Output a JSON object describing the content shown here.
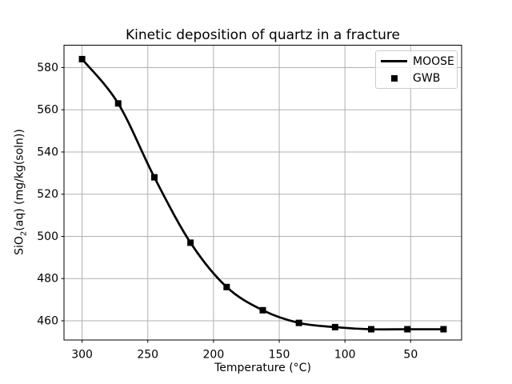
{
  "figure": {
    "background": "#ffffff"
  },
  "chart_data": {
    "type": "line",
    "title": "Kinetic deposition of quartz in a fracture",
    "xlabel": "Temperature (°C)",
    "ylabel": {
      "pre": "SiO",
      "sub": "2",
      "post": "(aq) (mg/kg(soln))"
    },
    "x": [
      300,
      272.5,
      245,
      217.5,
      190,
      162.5,
      135,
      107.5,
      80,
      52.5,
      25
    ],
    "series": [
      {
        "name": "MOOSE",
        "style": "line",
        "color": "#000000",
        "linewidth": 2.7,
        "values": [
          584,
          563,
          528,
          497,
          476,
          465,
          459,
          457,
          456,
          456,
          456
        ]
      },
      {
        "name": "GWB",
        "style": "square-markers",
        "color": "#000000",
        "markersize": 8,
        "values": [
          584,
          563,
          528,
          497,
          476,
          465,
          459,
          457,
          456,
          456,
          456
        ]
      }
    ],
    "xticks": [
      300,
      250,
      200,
      150,
      100,
      50
    ],
    "yticks": [
      460,
      480,
      500,
      520,
      540,
      560,
      580
    ],
    "xlim": [
      313.75,
      11.25
    ],
    "ylim": [
      450.9,
      590.6
    ],
    "x_inverted": true,
    "grid": true,
    "grid_color": "#b0b0b0",
    "axis_color": "#000000",
    "tick_label_color": "#000000",
    "legend": {
      "position": "upper right",
      "entries": [
        "MOOSE",
        "GWB"
      ]
    }
  }
}
